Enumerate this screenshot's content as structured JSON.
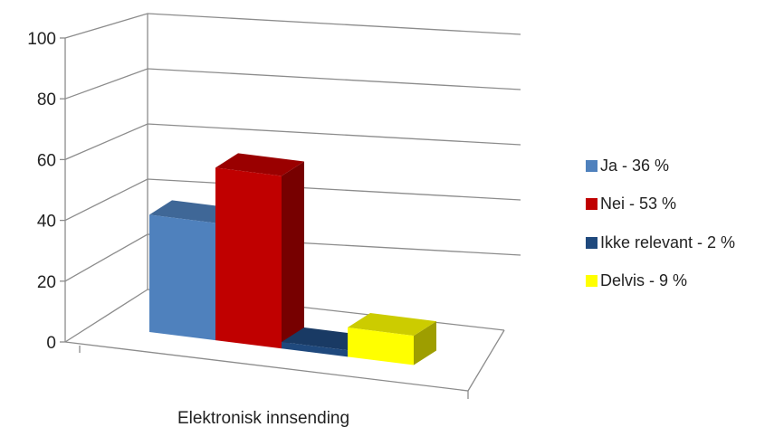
{
  "chart_data": {
    "type": "bar",
    "style": "3d-clustered-column",
    "categories": [
      "Elektronisk innsending"
    ],
    "series": [
      {
        "name": "Ja - 36 %",
        "values": [
          36
        ],
        "color": "#4F81BD"
      },
      {
        "name": "Nei - 53 %",
        "values": [
          53
        ],
        "color": "#C00000"
      },
      {
        "name": "Ikke relevant - 2 %",
        "values": [
          2
        ],
        "color": "#1F497D"
      },
      {
        "name": "Delvis - 9 %",
        "values": [
          9
        ],
        "color": "#FFFF00"
      }
    ],
    "yticks": [
      "0",
      "20",
      "40",
      "60",
      "80",
      "100"
    ],
    "ylim": [
      0,
      100
    ],
    "grid": true,
    "legend": "right"
  }
}
